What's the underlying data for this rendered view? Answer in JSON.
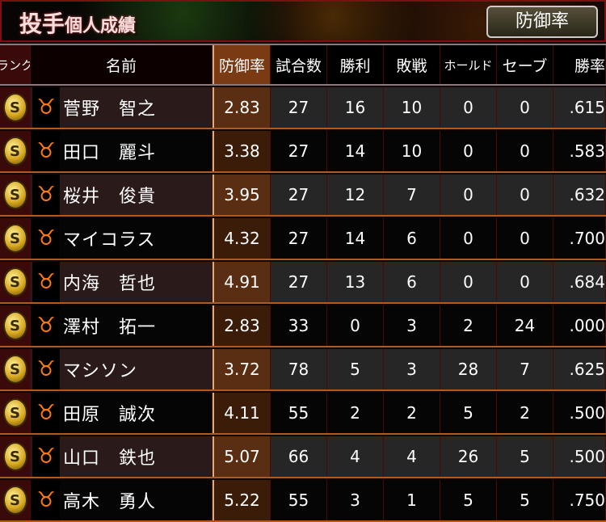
{
  "header": {
    "title_big": "投手",
    "title_small": "個人成績",
    "sort_button": "防御率"
  },
  "columns": [
    "ランク",
    "名前",
    "防御率",
    "試合数",
    "勝利",
    "敗戦",
    "ホールド",
    "セーブ",
    "勝率"
  ],
  "accent_colors": {
    "sorted_column": "#7a3a14",
    "logo": "#ff7a10",
    "medal": "#d8a820"
  },
  "rows": [
    {
      "rank": "S",
      "name": "菅野　智之",
      "era": "2.83",
      "g": "27",
      "w": "16",
      "l": "10",
      "h": "0",
      "s": "0",
      "pct": ".615"
    },
    {
      "rank": "S",
      "name": "田口　麗斗",
      "era": "3.38",
      "g": "27",
      "w": "14",
      "l": "10",
      "h": "0",
      "s": "0",
      "pct": ".583"
    },
    {
      "rank": "S",
      "name": "桜井　俊貴",
      "era": "3.95",
      "g": "27",
      "w": "12",
      "l": "7",
      "h": "0",
      "s": "0",
      "pct": ".632"
    },
    {
      "rank": "S",
      "name": "マイコラス",
      "era": "4.32",
      "g": "27",
      "w": "14",
      "l": "6",
      "h": "0",
      "s": "0",
      "pct": ".700"
    },
    {
      "rank": "S",
      "name": "内海　哲也",
      "era": "4.91",
      "g": "27",
      "w": "13",
      "l": "6",
      "h": "0",
      "s": "0",
      "pct": ".684"
    },
    {
      "rank": "S",
      "name": "澤村　拓一",
      "era": "2.83",
      "g": "33",
      "w": "0",
      "l": "3",
      "h": "2",
      "s": "24",
      "pct": ".000"
    },
    {
      "rank": "S",
      "name": "マシソン",
      "era": "3.72",
      "g": "78",
      "w": "5",
      "l": "3",
      "h": "28",
      "s": "7",
      "pct": ".625"
    },
    {
      "rank": "S",
      "name": "田原　誠次",
      "era": "4.11",
      "g": "55",
      "w": "2",
      "l": "2",
      "h": "5",
      "s": "2",
      "pct": ".500"
    },
    {
      "rank": "S",
      "name": "山口　鉄也",
      "era": "5.07",
      "g": "66",
      "w": "4",
      "l": "4",
      "h": "26",
      "s": "5",
      "pct": ".500"
    },
    {
      "rank": "S",
      "name": "高木　勇人",
      "era": "5.22",
      "g": "55",
      "w": "3",
      "l": "1",
      "h": "5",
      "s": "5",
      "pct": ".750"
    }
  ]
}
